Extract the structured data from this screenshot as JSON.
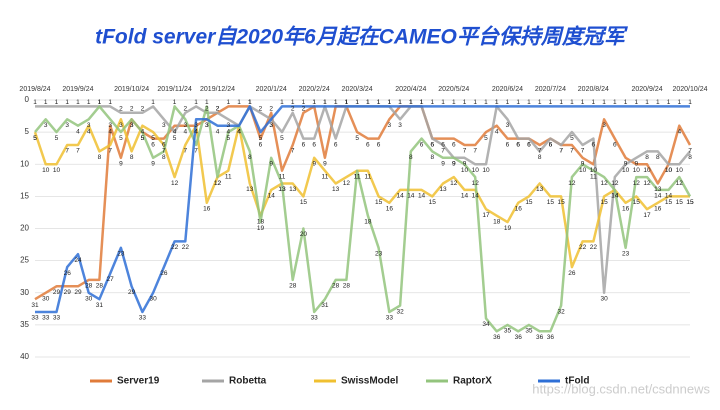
{
  "chart_data": {
    "type": "line",
    "title": "tFold server自2020年6月起在CAMEO平台保持周度冠军",
    "watermark": "https://blog.csdn.net/csdnnews",
    "categories": [
      "2019/8/24",
      null,
      null,
      null,
      "2019/9/24",
      null,
      null,
      null,
      null,
      "2019/10/24",
      null,
      null,
      null,
      "2019/11/24",
      null,
      null,
      null,
      "2019/12/24",
      null,
      null,
      null,
      null,
      "2020/1/24",
      null,
      null,
      null,
      "2020/2/24",
      null,
      null,
      null,
      "2020/3/24",
      null,
      null,
      null,
      null,
      "2020/4/24",
      null,
      null,
      null,
      "2020/5/24",
      null,
      null,
      null,
      null,
      "2020/6/24",
      null,
      null,
      null,
      "2020/7/24",
      null,
      null,
      null,
      "2020/8/24",
      null,
      null,
      null,
      null,
      "2020/9/24",
      null,
      null,
      null,
      "2020/10/24"
    ],
    "series": [
      {
        "name": "Server19",
        "color": "#e07b39",
        "values": [
          31,
          30,
          29,
          29,
          29,
          28,
          28,
          4,
          9,
          3,
          5,
          6,
          6,
          4,
          4,
          4,
          3,
          2,
          1,
          1,
          1,
          6,
          2,
          11,
          7,
          2,
          1,
          9,
          1,
          1,
          5,
          6,
          6,
          3,
          1,
          1,
          1,
          6,
          6,
          6,
          7,
          7,
          5,
          4,
          6,
          6,
          6,
          7,
          6,
          7,
          7,
          9,
          10,
          3,
          6,
          9,
          10,
          10,
          13,
          10,
          4,
          7
        ]
      },
      {
        "name": "Robetta",
        "color": "#a5a5a5",
        "values": [
          1,
          1,
          1,
          1,
          1,
          1,
          1,
          1,
          2,
          2,
          2,
          1,
          3,
          5,
          2,
          1,
          2,
          2,
          3,
          4,
          1,
          2,
          3,
          5,
          2,
          6,
          6,
          1,
          6,
          1,
          1,
          1,
          1,
          1,
          3,
          1,
          1,
          6,
          7,
          9,
          9,
          10,
          10,
          1,
          3,
          6,
          6,
          8,
          6,
          7,
          5,
          7,
          6,
          30,
          12,
          10,
          9,
          8,
          8,
          10,
          10,
          8
        ]
      },
      {
        "name": "SwissModel",
        "color": "#f0c030",
        "values": [
          5,
          10,
          10,
          7,
          7,
          4,
          8,
          7,
          3,
          8,
          4,
          5,
          7,
          12,
          7,
          4,
          16,
          12,
          11,
          4,
          13,
          18,
          14,
          13,
          13,
          15,
          9,
          11,
          13,
          12,
          11,
          11,
          15,
          16,
          14,
          14,
          14,
          15,
          13,
          12,
          14,
          14,
          17,
          18,
          19,
          16,
          15,
          13,
          15,
          15,
          26,
          22,
          22,
          15,
          14,
          16,
          15,
          17,
          16,
          15,
          15,
          15
        ]
      },
      {
        "name": "RaptorX",
        "color": "#93c47d",
        "values": [
          5,
          3,
          5,
          3,
          4,
          3,
          1,
          3,
          5,
          3,
          5,
          9,
          8,
          1,
          3,
          7,
          1,
          12,
          5,
          4,
          8,
          19,
          9,
          13,
          28,
          20,
          33,
          31,
          28,
          28,
          11,
          18,
          23,
          33,
          32,
          8,
          6,
          8,
          9,
          9,
          10,
          12,
          34,
          36,
          35,
          36,
          35,
          36,
          36,
          32,
          12,
          10,
          11,
          12,
          14,
          23,
          12,
          12,
          14,
          14,
          12,
          15
        ]
      },
      {
        "name": "tFold",
        "color": "#2e6fd6",
        "values": [
          33,
          33,
          33,
          26,
          24,
          30,
          31,
          27,
          23,
          29,
          33,
          30,
          26,
          22,
          22,
          3,
          3,
          4,
          4,
          4,
          1,
          5,
          3,
          1,
          1,
          1,
          1,
          1,
          1,
          1,
          1,
          1,
          1,
          1,
          1,
          1,
          1,
          1,
          1,
          1,
          1,
          1,
          1,
          1,
          1,
          1,
          1,
          1,
          1,
          1,
          1,
          1,
          1,
          1,
          1,
          1,
          1,
          1,
          1,
          1,
          1,
          1
        ]
      }
    ],
    "ylim": [
      0,
      40
    ],
    "yticks": [
      0,
      5,
      10,
      15,
      20,
      25,
      30,
      35,
      40
    ],
    "invert_y": true,
    "grid": true,
    "legend": "bottom"
  }
}
